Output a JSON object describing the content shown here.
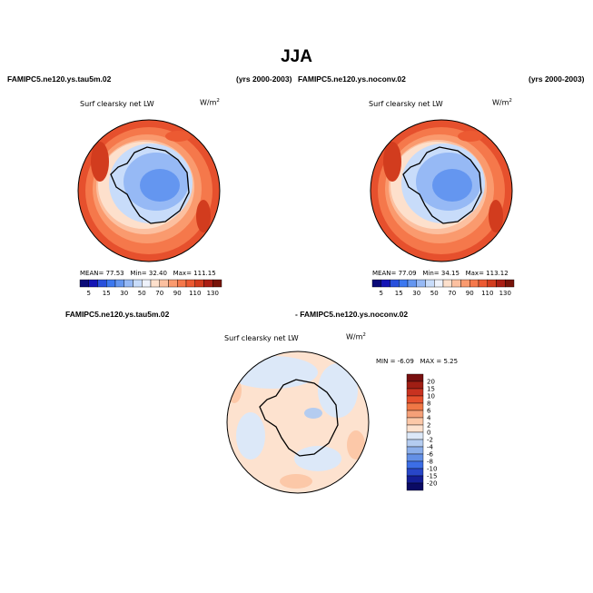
{
  "title": "JJA",
  "panels": [
    {
      "case_name": "FAMIPC5.ne120.ys.tau5m.02",
      "years": "(yrs 2000-2003)",
      "plot_title": "Surf clearsky net LW",
      "units_base": "W/m",
      "units_exp": "2",
      "stats": {
        "mean_label": "MEAN=",
        "mean": "77.53",
        "min_label": "Min=",
        "min": "32.40",
        "max_label": "Max=",
        "max": "111.15"
      },
      "colorbar_ticks": [
        "5",
        "15",
        "30",
        "50",
        "70",
        "90",
        "110",
        "130"
      ]
    },
    {
      "case_name": "FAMIPC5.ne120.ys.noconv.02",
      "years": "(yrs 2000-2003)",
      "plot_title": "Surf clearsky net LW",
      "units_base": "W/m",
      "units_exp": "2",
      "stats": {
        "mean_label": "MEAN=",
        "mean": "77.09",
        "min_label": "Min=",
        "min": "34.15",
        "max_label": "Max=",
        "max": "113.12"
      },
      "colorbar_ticks": [
        "5",
        "15",
        "30",
        "50",
        "70",
        "90",
        "110",
        "130"
      ]
    }
  ],
  "difference": {
    "left_case": "FAMIPC5.ne120.ys.tau5m.02",
    "right_case": "- FAMIPC5.ne120.ys.noconv.02",
    "plot_title": "Surf clearsky net LW",
    "units_base": "W/m",
    "units_exp": "2",
    "stats": {
      "min_label": "MIN =",
      "min": "-6.09",
      "max_label": "MAX =",
      "max": "5.25"
    },
    "colorbar_ticks": [
      "20",
      "15",
      "10",
      "8",
      "6",
      "4",
      "2",
      "0",
      "-2",
      "-4",
      "-6",
      "-8",
      "-10",
      "-15",
      "-20"
    ]
  },
  "colors": {
    "abs_scale": [
      "#0a0a78",
      "#1414b4",
      "#2850dc",
      "#3c78f0",
      "#6496f0",
      "#96b9f5",
      "#c8dcfa",
      "#eef2fb",
      "#fde0cc",
      "#fcc0a0",
      "#fa9a6e",
      "#f5784b",
      "#ec5a32",
      "#d23c1e",
      "#aa1e14",
      "#78140a"
    ],
    "diff_scale": [
      "#781010",
      "#a01e14",
      "#c83220",
      "#e6502d",
      "#f07846",
      "#f5a078",
      "#fcc8a8",
      "#fde2cf",
      "#dce8f8",
      "#b4ccf0",
      "#8cafea",
      "#6490e6",
      "#3c6ee6",
      "#2846c8",
      "#141e96",
      "#0a0a64"
    ],
    "land_outline": "#000000"
  }
}
